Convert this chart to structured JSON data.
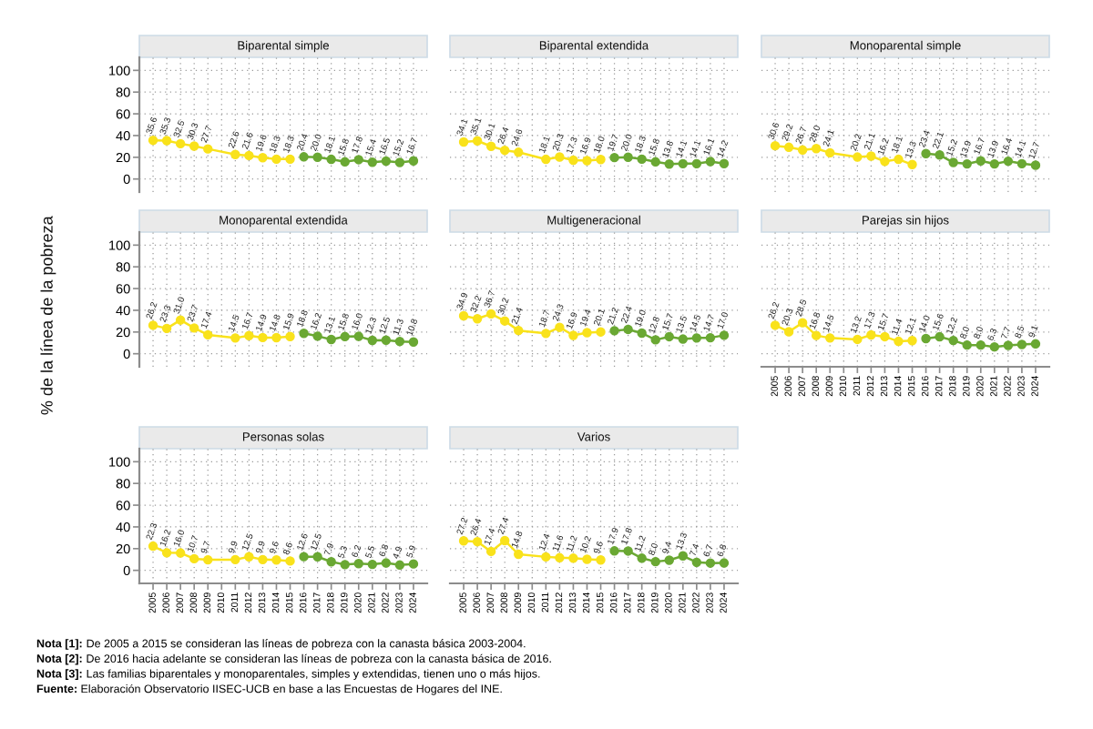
{
  "chart_data": [
    {
      "type": "line",
      "title": "Biparental simple",
      "xlim": [
        2004,
        2025
      ],
      "xticks": [
        2005,
        2006,
        2007,
        2008,
        2009,
        2010,
        2011,
        2012,
        2013,
        2014,
        2015,
        2016,
        2017,
        2018,
        2019,
        2020,
        2021,
        2022,
        2023,
        2024
      ],
      "ylim": [
        -12,
        112
      ],
      "yticks": [
        0,
        20,
        40,
        60,
        80,
        100
      ],
      "grid": true,
      "marker": "circle",
      "line_style": "solid",
      "tick_labels": "y",
      "series": [
        {
          "color": "#f9e21b",
          "x": [
            2005,
            2006,
            2007,
            2008,
            2009,
            2011,
            2012,
            2013,
            2014,
            2015
          ],
          "values": [
            35.6,
            35.3,
            32.5,
            30.3,
            27.7,
            22.6,
            21.6,
            19.6,
            18.3,
            18.3
          ],
          "value_labels": [
            "35.6",
            "35.3",
            "32.5",
            "30.3",
            "27.7",
            "22.6",
            "21.6",
            "19.6",
            "18.3",
            "18.3"
          ]
        },
        {
          "color": "#6aa833",
          "x": [
            2016,
            2017,
            2018,
            2019,
            2020,
            2021,
            2022,
            2023,
            2024
          ],
          "values": [
            20.4,
            20.0,
            18.1,
            15.8,
            17.8,
            15.4,
            16.5,
            15.2,
            16.7
          ],
          "value_labels": [
            "20.4",
            "20.0",
            "18.1",
            "15.8",
            "17.8",
            "15.4",
            "16.5",
            "15.2",
            "16.7"
          ]
        }
      ]
    },
    {
      "type": "line",
      "title": "Biparental extendida",
      "xlim": [
        2004,
        2025
      ],
      "xticks": [
        2005,
        2006,
        2007,
        2008,
        2009,
        2010,
        2011,
        2012,
        2013,
        2014,
        2015,
        2016,
        2017,
        2018,
        2019,
        2020,
        2021,
        2022,
        2023,
        2024
      ],
      "ylim": [
        -12,
        112
      ],
      "yticks": [
        0,
        20,
        40,
        60,
        80,
        100
      ],
      "grid": true,
      "marker": "circle",
      "line_style": "solid",
      "tick_labels": false,
      "series": [
        {
          "color": "#f9e21b",
          "x": [
            2005,
            2006,
            2007,
            2008,
            2009,
            2011,
            2012,
            2013,
            2014,
            2015
          ],
          "values": [
            34.1,
            35.1,
            30.1,
            26.4,
            24.6,
            18.1,
            20.3,
            17.3,
            16.9,
            18.0
          ],
          "value_labels": [
            "34.1",
            "35.1",
            "30.1",
            "26.4",
            "24.6",
            "18.1",
            "20.3",
            "17.3",
            "16.9",
            "18.0"
          ]
        },
        {
          "color": "#6aa833",
          "x": [
            2016,
            2017,
            2018,
            2019,
            2020,
            2021,
            2022,
            2023,
            2024
          ],
          "values": [
            19.7,
            20.0,
            18.3,
            15.8,
            13.8,
            14.1,
            14.1,
            16.1,
            14.2
          ],
          "value_labels": [
            "19.7",
            "20.0",
            "18.3",
            "15.8",
            "13.8",
            "14.1",
            "14.1",
            "16.1",
            "14.2"
          ]
        }
      ]
    },
    {
      "type": "line",
      "title": "Monoparental simple",
      "xlim": [
        2004,
        2025
      ],
      "xticks": [
        2005,
        2006,
        2007,
        2008,
        2009,
        2010,
        2011,
        2012,
        2013,
        2014,
        2015,
        2016,
        2017,
        2018,
        2019,
        2020,
        2021,
        2022,
        2023,
        2024
      ],
      "ylim": [
        -12,
        112
      ],
      "yticks": [
        0,
        20,
        40,
        60,
        80,
        100
      ],
      "grid": true,
      "marker": "circle",
      "line_style": "solid",
      "tick_labels": false,
      "series": [
        {
          "color": "#f9e21b",
          "x": [
            2005,
            2006,
            2007,
            2008,
            2009,
            2011,
            2012,
            2013,
            2014,
            2015
          ],
          "values": [
            30.6,
            29.2,
            26.7,
            28.0,
            24.1,
            20.2,
            21.1,
            16.2,
            18.1,
            13.3
          ],
          "value_labels": [
            "30.6",
            "29.2",
            "26.7",
            "28.0",
            "24.1",
            "20.2",
            "21.1",
            "16.2",
            "18.1",
            "13.3"
          ]
        },
        {
          "color": "#6aa833",
          "x": [
            2016,
            2017,
            2018,
            2019,
            2020,
            2021,
            2022,
            2023,
            2024
          ],
          "values": [
            23.4,
            22.1,
            15.2,
            13.9,
            16.7,
            13.9,
            16.4,
            14.1,
            12.7
          ],
          "value_labels": [
            "23.4",
            "22.1",
            "15.2",
            "13.9",
            "16.7",
            "13.9",
            "16.4",
            "14.1",
            "12.7"
          ]
        }
      ]
    },
    {
      "type": "line",
      "title": "Monoparental extendida",
      "ylabel": "% de la línea de la pobreza",
      "xlim": [
        2004,
        2025
      ],
      "xticks": [
        2005,
        2006,
        2007,
        2008,
        2009,
        2010,
        2011,
        2012,
        2013,
        2014,
        2015,
        2016,
        2017,
        2018,
        2019,
        2020,
        2021,
        2022,
        2023,
        2024
      ],
      "ylim": [
        -12,
        112
      ],
      "yticks": [
        0,
        20,
        40,
        60,
        80,
        100
      ],
      "grid": true,
      "marker": "circle",
      "line_style": "solid",
      "tick_labels": "y",
      "series": [
        {
          "color": "#f9e21b",
          "x": [
            2005,
            2006,
            2007,
            2008,
            2009,
            2011,
            2012,
            2013,
            2014,
            2015
          ],
          "values": [
            26.2,
            23.3,
            31.0,
            23.7,
            17.4,
            14.5,
            16.7,
            14.9,
            14.8,
            15.9
          ],
          "value_labels": [
            "26.2",
            "23.3",
            "31.0",
            "23.7",
            "17.4",
            "14.5",
            "16.7",
            "14.9",
            "14.8",
            "15.9"
          ]
        },
        {
          "color": "#6aa833",
          "x": [
            2016,
            2017,
            2018,
            2019,
            2020,
            2021,
            2022,
            2023,
            2024
          ],
          "values": [
            18.8,
            16.2,
            13.1,
            15.8,
            16.0,
            12.3,
            12.5,
            11.3,
            10.8
          ],
          "value_labels": [
            "18.8",
            "16.2",
            "13.1",
            "15.8",
            "16.0",
            "12.3",
            "12.5",
            "11.3",
            "10.8"
          ]
        }
      ]
    },
    {
      "type": "line",
      "title": "Multigeneracional",
      "xlim": [
        2004,
        2025
      ],
      "xticks": [
        2005,
        2006,
        2007,
        2008,
        2009,
        2010,
        2011,
        2012,
        2013,
        2014,
        2015,
        2016,
        2017,
        2018,
        2019,
        2020,
        2021,
        2022,
        2023,
        2024
      ],
      "ylim": [
        -12,
        112
      ],
      "yticks": [
        0,
        20,
        40,
        60,
        80,
        100
      ],
      "grid": true,
      "marker": "circle",
      "line_style": "solid",
      "tick_labels": false,
      "series": [
        {
          "color": "#f9e21b",
          "x": [
            2005,
            2006,
            2007,
            2008,
            2009,
            2011,
            2012,
            2013,
            2014,
            2015
          ],
          "values": [
            34.9,
            32.2,
            36.7,
            30.2,
            21.4,
            18.7,
            24.3,
            16.9,
            19.4,
            20.1
          ],
          "value_labels": [
            "34.9",
            "32.2",
            "36.7",
            "30.2",
            "21.4",
            "18.7",
            "24.3",
            "16.9",
            "19.4",
            "20.1"
          ]
        },
        {
          "color": "#6aa833",
          "x": [
            2016,
            2017,
            2018,
            2019,
            2020,
            2021,
            2022,
            2023,
            2024
          ],
          "values": [
            21.2,
            22.4,
            19.0,
            12.8,
            15.7,
            13.5,
            14.5,
            14.7,
            17.0
          ],
          "value_labels": [
            "21.2",
            "22.4",
            "19.0",
            "12.8",
            "15.7",
            "13.5",
            "14.5",
            "14.7",
            "17.0"
          ]
        }
      ]
    },
    {
      "type": "line",
      "title": "Parejas sin hijos",
      "xlim": [
        2004,
        2025
      ],
      "xticks": [
        2005,
        2006,
        2007,
        2008,
        2009,
        2010,
        2011,
        2012,
        2013,
        2014,
        2015,
        2016,
        2017,
        2018,
        2019,
        2020,
        2021,
        2022,
        2023,
        2024
      ],
      "ylim": [
        -12,
        112
      ],
      "yticks": [
        0,
        20,
        40,
        60,
        80,
        100
      ],
      "grid": true,
      "marker": "circle",
      "line_style": "solid",
      "tick_labels": "x",
      "series": [
        {
          "color": "#f9e21b",
          "x": [
            2005,
            2006,
            2007,
            2008,
            2009,
            2011,
            2012,
            2013,
            2014,
            2015
          ],
          "values": [
            26.2,
            20.3,
            28.5,
            16.8,
            14.5,
            13.2,
            17.3,
            15.7,
            11.4,
            12.1
          ],
          "value_labels": [
            "26.2",
            "20.3",
            "28.5",
            "16.8",
            "14.5",
            "13.2",
            "17.3",
            "15.7",
            "11.4",
            "12.1"
          ]
        },
        {
          "color": "#6aa833",
          "x": [
            2016,
            2017,
            2018,
            2019,
            2020,
            2021,
            2022,
            2023,
            2024
          ],
          "values": [
            14.0,
            15.6,
            12.2,
            8.0,
            8.0,
            6.3,
            7.7,
            8.5,
            9.1
          ],
          "value_labels": [
            "14.0",
            "15.6",
            "12.2",
            "8.0",
            "8.0",
            "6.3",
            "7.7",
            "8.5",
            "9.1"
          ]
        }
      ]
    },
    {
      "type": "line",
      "title": "Personas solas",
      "xlim": [
        2004,
        2025
      ],
      "xticks": [
        2005,
        2006,
        2007,
        2008,
        2009,
        2010,
        2011,
        2012,
        2013,
        2014,
        2015,
        2016,
        2017,
        2018,
        2019,
        2020,
        2021,
        2022,
        2023,
        2024
      ],
      "ylim": [
        -12,
        112
      ],
      "yticks": [
        0,
        20,
        40,
        60,
        80,
        100
      ],
      "grid": true,
      "marker": "circle",
      "line_style": "solid",
      "annotations": [
        "Nota [1]: De 2005 a 2015 se consideran las líneas de pobreza con la canasta básica 2003-2004.",
        "Nota [2]: De 2016 hacia adelante se consideran las líneas de pobreza con la canasta básica de 2016.",
        "Nota [3]: Las familias biparentales y monoparentales, simples y extendidas, tienen uno o más hijos.",
        "Fuente: Elaboración Observatorio IISEC-UCB en base a las Encuestas de Hogares del INE."
      ],
      "series": [
        {
          "color": "#f9e21b",
          "x": [
            2005,
            2006,
            2007,
            2008,
            2009,
            2011,
            2012,
            2013,
            2014,
            2015
          ],
          "values": [
            22.3,
            16.2,
            16.0,
            10.7,
            9.7,
            9.9,
            12.5,
            9.9,
            9.6,
            8.6
          ],
          "value_labels": [
            "22.3",
            "16.2",
            "16.0",
            "10.7",
            "9.7",
            "9.9",
            "12.5",
            "9.9",
            "9.6",
            "8.6"
          ]
        },
        {
          "color": "#6aa833",
          "x": [
            2016,
            2017,
            2018,
            2019,
            2020,
            2021,
            2022,
            2023,
            2024
          ],
          "values": [
            12.6,
            12.5,
            7.9,
            5.3,
            6.2,
            5.5,
            6.8,
            4.9,
            5.9
          ],
          "value_labels": [
            "12.6",
            "12.5",
            "7.9",
            "5.3",
            "6.2",
            "5.5",
            "6.8",
            "4.9",
            "5.9"
          ]
        }
      ]
    },
    {
      "type": "line",
      "title": "Varios",
      "xlim": [
        2004,
        2025
      ],
      "xticks": [
        2005,
        2006,
        2007,
        2008,
        2009,
        2010,
        2011,
        2012,
        2013,
        2014,
        2015,
        2016,
        2017,
        2018,
        2019,
        2020,
        2021,
        2022,
        2023,
        2024
      ],
      "ylim": [
        -12,
        112
      ],
      "yticks": [
        0,
        20,
        40,
        60,
        80,
        100
      ],
      "grid": true,
      "marker": "circle",
      "line_style": "solid",
      "tick_labels": "x",
      "series": [
        {
          "color": "#f9e21b",
          "x": [
            2005,
            2006,
            2007,
            2008,
            2009,
            2011,
            2012,
            2013,
            2014,
            2015
          ],
          "values": [
            27.2,
            26.4,
            17.4,
            27.4,
            14.8,
            12.4,
            11.6,
            11.2,
            10.2,
            9.6
          ],
          "value_labels": [
            "27.2",
            "26.4",
            "17.4",
            "27.4",
            "14.8",
            "12.4",
            "11.6",
            "11.2",
            "10.2",
            "9.6"
          ]
        },
        {
          "color": "#6aa833",
          "x": [
            2016,
            2017,
            2018,
            2019,
            2020,
            2021,
            2022,
            2023,
            2024
          ],
          "values": [
            17.9,
            17.8,
            11.2,
            8.0,
            9.4,
            13.3,
            7.4,
            6.7,
            6.8
          ],
          "value_labels": [
            "17.9",
            "17.8",
            "11.2",
            "8.0",
            "9.4",
            "13.3",
            "7.4",
            "6.7",
            "6.8"
          ]
        }
      ]
    }
  ]
}
